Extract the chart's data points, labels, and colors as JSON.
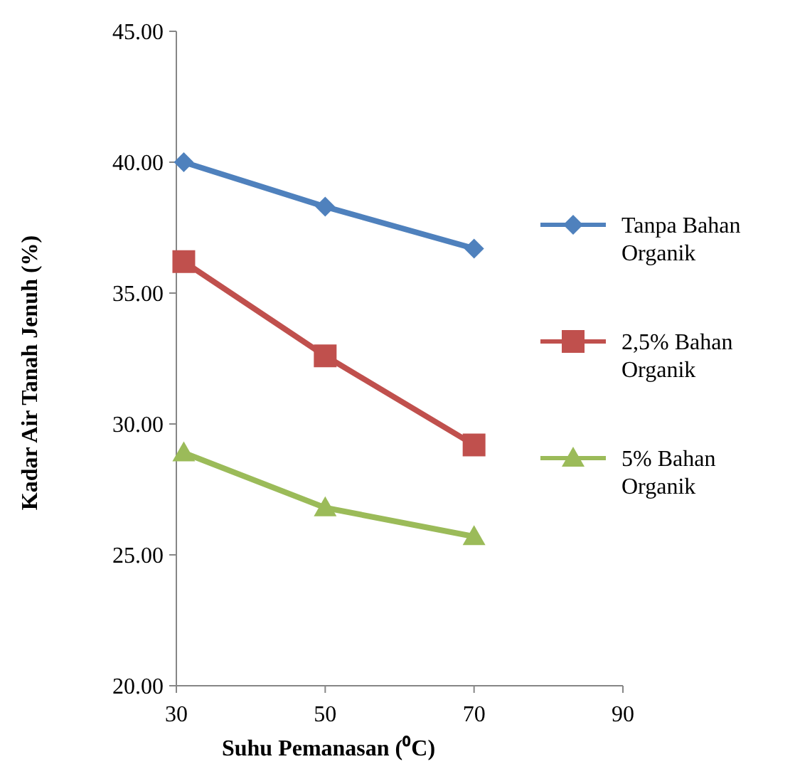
{
  "chart_data": {
    "type": "line",
    "xlabel": "Suhu Pemanasan (⁰C)",
    "ylabel": "Kadar Air Tanah  Jenuh (%)",
    "x": [
      31,
      50,
      70
    ],
    "series": [
      {
        "name": "Tanpa Bahan Organik",
        "color": "#4f81bd",
        "marker": "diamond",
        "values": [
          40.0,
          38.3,
          36.7
        ]
      },
      {
        "name": "2,5% Bahan Organik",
        "color": "#c0504d",
        "marker": "square",
        "values": [
          36.2,
          32.6,
          29.2
        ]
      },
      {
        "name": "5% Bahan Organik",
        "color": "#9bbb59",
        "marker": "triangle",
        "values": [
          28.9,
          26.8,
          25.7
        ]
      }
    ],
    "xlim": [
      30,
      90
    ],
    "xticks": [
      30,
      50,
      70,
      90
    ],
    "ylim": [
      20,
      45
    ],
    "yticks": [
      {
        "value": 20,
        "label": "20.00"
      },
      {
        "value": 25,
        "label": "25.00"
      },
      {
        "value": 30,
        "label": "30.00"
      },
      {
        "value": 35,
        "label": "35.00"
      },
      {
        "value": 40,
        "label": "40.00"
      },
      {
        "value": 45,
        "label": "45.00"
      }
    ],
    "grid": false,
    "legend": "right",
    "line_style": "solid"
  }
}
